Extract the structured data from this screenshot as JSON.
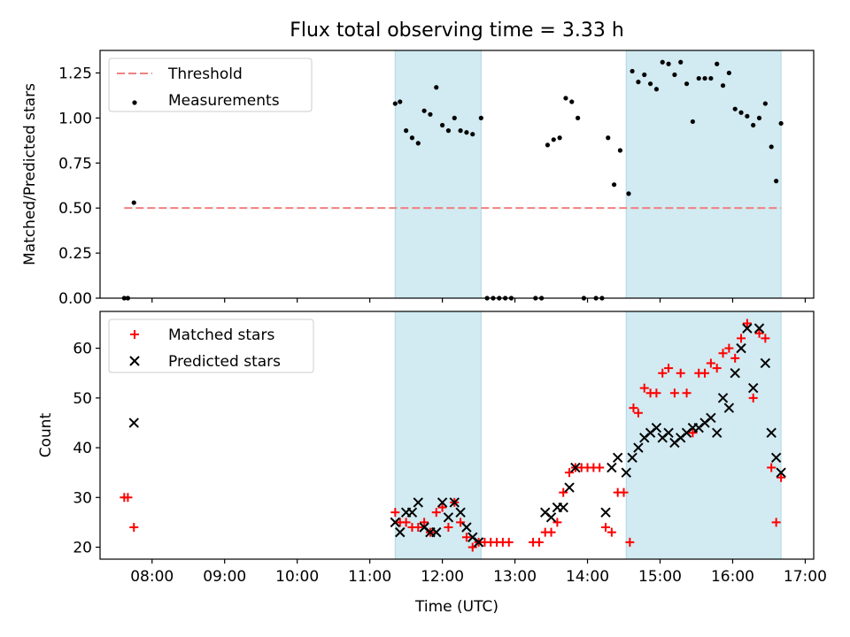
{
  "chart_data": [
    {
      "type": "scatter",
      "title": "Flux total observing time = 3.33 h",
      "xlabel": "",
      "ylabel": "Matched/Predicted stars",
      "xlim": [
        "07:17",
        "17:07"
      ],
      "ylim": [
        0,
        1.375
      ],
      "x_ticks": [
        "08:00",
        "09:00",
        "10:00",
        "11:00",
        "12:00",
        "13:00",
        "14:00",
        "15:00",
        "16:00",
        "17:00"
      ],
      "y_ticks": [
        "0.00",
        "0.25",
        "0.50",
        "0.75",
        "1.00",
        "1.25"
      ],
      "legend": {
        "placement": "top-left",
        "entries": [
          "Threshold",
          "Measurements"
        ]
      },
      "shaded_intervals": [
        [
          "11:21",
          "12:32"
        ],
        [
          "14:32",
          "16:40"
        ]
      ],
      "threshold": {
        "label": "Threshold",
        "y": 0.5,
        "x_range": [
          "07:37",
          "16:40"
        ],
        "color": "#f08080"
      },
      "series": [
        {
          "name": "Measurements",
          "color": "#000000",
          "points": [
            [
              "07:37",
              0.0
            ],
            [
              "07:40",
              0.0
            ],
            [
              "07:45",
              0.53
            ],
            [
              "11:21",
              1.08
            ],
            [
              "11:25",
              1.09
            ],
            [
              "11:30",
              0.93
            ],
            [
              "11:35",
              0.89
            ],
            [
              "11:40",
              0.86
            ],
            [
              "11:45",
              1.04
            ],
            [
              "11:50",
              1.02
            ],
            [
              "11:55",
              1.17
            ],
            [
              "12:00",
              0.96
            ],
            [
              "12:05",
              0.93
            ],
            [
              "12:10",
              1.0
            ],
            [
              "12:15",
              0.93
            ],
            [
              "12:20",
              0.92
            ],
            [
              "12:25",
              0.91
            ],
            [
              "12:32",
              1.0
            ],
            [
              "12:37",
              0.0
            ],
            [
              "12:42",
              0.0
            ],
            [
              "12:47",
              0.0
            ],
            [
              "12:52",
              0.0
            ],
            [
              "12:57",
              0.0
            ],
            [
              "13:17",
              0.0
            ],
            [
              "13:22",
              0.0
            ],
            [
              "13:27",
              0.85
            ],
            [
              "13:32",
              0.88
            ],
            [
              "13:37",
              0.89
            ],
            [
              "13:42",
              1.11
            ],
            [
              "13:47",
              1.09
            ],
            [
              "13:52",
              1.0
            ],
            [
              "13:57",
              0.0
            ],
            [
              "14:07",
              0.0
            ],
            [
              "14:12",
              0.0
            ],
            [
              "14:17",
              0.89
            ],
            [
              "14:22",
              0.63
            ],
            [
              "14:27",
              0.82
            ],
            [
              "14:34",
              0.58
            ],
            [
              "14:37",
              1.26
            ],
            [
              "14:42",
              1.2
            ],
            [
              "14:47",
              1.24
            ],
            [
              "14:52",
              1.19
            ],
            [
              "14:57",
              1.16
            ],
            [
              "15:02",
              1.31
            ],
            [
              "15:07",
              1.3
            ],
            [
              "15:12",
              1.24
            ],
            [
              "15:17",
              1.31
            ],
            [
              "15:22",
              1.19
            ],
            [
              "15:27",
              0.98
            ],
            [
              "15:32",
              1.22
            ],
            [
              "15:37",
              1.22
            ],
            [
              "15:42",
              1.22
            ],
            [
              "15:47",
              1.3
            ],
            [
              "15:52",
              1.18
            ],
            [
              "15:57",
              1.25
            ],
            [
              "16:02",
              1.05
            ],
            [
              "16:07",
              1.03
            ],
            [
              "16:12",
              1.01
            ],
            [
              "16:17",
              0.96
            ],
            [
              "16:22",
              1.0
            ],
            [
              "16:27",
              1.08
            ],
            [
              "16:32",
              0.84
            ],
            [
              "16:36",
              0.65
            ],
            [
              "16:40",
              0.97
            ]
          ]
        }
      ]
    },
    {
      "type": "scatter",
      "title": "",
      "xlabel": "Time (UTC)",
      "ylabel": "Count",
      "xlim": [
        "07:17",
        "17:07"
      ],
      "ylim": [
        17.6,
        67.4
      ],
      "x_ticks": [
        "08:00",
        "09:00",
        "10:00",
        "11:00",
        "12:00",
        "13:00",
        "14:00",
        "15:00",
        "16:00",
        "17:00"
      ],
      "y_ticks": [
        "20",
        "30",
        "40",
        "50",
        "60"
      ],
      "legend": {
        "placement": "top-left",
        "entries": [
          "Matched stars",
          "Predicted stars"
        ]
      },
      "shaded_intervals": [
        [
          "11:21",
          "12:32"
        ],
        [
          "14:32",
          "16:40"
        ]
      ],
      "series": [
        {
          "name": "Matched stars",
          "marker": "+",
          "color": "#ff0000",
          "points": [
            [
              "07:37",
              30
            ],
            [
              "07:40",
              30
            ],
            [
              "07:45",
              24
            ],
            [
              "11:21",
              27
            ],
            [
              "11:25",
              25
            ],
            [
              "11:30",
              25
            ],
            [
              "11:35",
              24
            ],
            [
              "11:40",
              24
            ],
            [
              "11:45",
              25
            ],
            [
              "11:50",
              23
            ],
            [
              "11:55",
              27
            ],
            [
              "12:00",
              28
            ],
            [
              "12:05",
              24
            ],
            [
              "12:10",
              29
            ],
            [
              "12:15",
              25
            ],
            [
              "12:20",
              22
            ],
            [
              "12:25",
              20
            ],
            [
              "12:30",
              21
            ],
            [
              "12:35",
              21
            ],
            [
              "12:40",
              21
            ],
            [
              "12:45",
              21
            ],
            [
              "12:50",
              21
            ],
            [
              "12:55",
              21
            ],
            [
              "13:15",
              21
            ],
            [
              "13:20",
              21
            ],
            [
              "13:25",
              23
            ],
            [
              "13:30",
              23
            ],
            [
              "13:35",
              25
            ],
            [
              "13:40",
              31
            ],
            [
              "13:45",
              35
            ],
            [
              "13:50",
              36
            ],
            [
              "13:55",
              36
            ],
            [
              "14:00",
              36
            ],
            [
              "14:05",
              36
            ],
            [
              "14:10",
              36
            ],
            [
              "14:15",
              24
            ],
            [
              "14:20",
              23
            ],
            [
              "14:25",
              31
            ],
            [
              "14:30",
              31
            ],
            [
              "14:35",
              21
            ],
            [
              "14:38",
              48
            ],
            [
              "14:42",
              47
            ],
            [
              "14:47",
              52
            ],
            [
              "14:52",
              51
            ],
            [
              "14:57",
              51
            ],
            [
              "15:02",
              55
            ],
            [
              "15:07",
              56
            ],
            [
              "15:12",
              51
            ],
            [
              "15:17",
              55
            ],
            [
              "15:22",
              51
            ],
            [
              "15:27",
              43
            ],
            [
              "15:32",
              55
            ],
            [
              "15:37",
              55
            ],
            [
              "15:42",
              57
            ],
            [
              "15:47",
              56
            ],
            [
              "15:52",
              59
            ],
            [
              "15:57",
              60
            ],
            [
              "16:02",
              58
            ],
            [
              "16:07",
              62
            ],
            [
              "16:12",
              65
            ],
            [
              "16:17",
              50
            ],
            [
              "16:22",
              63
            ],
            [
              "16:27",
              62
            ],
            [
              "16:32",
              36
            ],
            [
              "16:36",
              25
            ],
            [
              "16:40",
              34
            ]
          ]
        },
        {
          "name": "Predicted stars",
          "marker": "x",
          "color": "#000000",
          "points": [
            [
              "07:45",
              45
            ],
            [
              "11:21",
              25
            ],
            [
              "11:25",
              23
            ],
            [
              "11:30",
              27
            ],
            [
              "11:35",
              27
            ],
            [
              "11:40",
              29
            ],
            [
              "11:45",
              24
            ],
            [
              "11:50",
              23
            ],
            [
              "11:55",
              23
            ],
            [
              "12:00",
              29
            ],
            [
              "12:05",
              26
            ],
            [
              "12:10",
              29
            ],
            [
              "12:15",
              27
            ],
            [
              "12:20",
              24
            ],
            [
              "12:25",
              22
            ],
            [
              "12:30",
              21
            ],
            [
              "13:25",
              27
            ],
            [
              "13:30",
              26
            ],
            [
              "13:35",
              28
            ],
            [
              "13:40",
              28
            ],
            [
              "13:45",
              32
            ],
            [
              "13:50",
              36
            ],
            [
              "14:15",
              27
            ],
            [
              "14:20",
              36
            ],
            [
              "14:25",
              38
            ],
            [
              "14:32",
              35
            ],
            [
              "14:37",
              38
            ],
            [
              "14:42",
              40
            ],
            [
              "14:47",
              42
            ],
            [
              "14:52",
              43
            ],
            [
              "14:57",
              44
            ],
            [
              "15:02",
              42
            ],
            [
              "15:07",
              43
            ],
            [
              "15:12",
              41
            ],
            [
              "15:17",
              42
            ],
            [
              "15:22",
              43
            ],
            [
              "15:27",
              44
            ],
            [
              "15:32",
              44
            ],
            [
              "15:37",
              45
            ],
            [
              "15:42",
              46
            ],
            [
              "15:47",
              43
            ],
            [
              "15:52",
              50
            ],
            [
              "15:57",
              48
            ],
            [
              "16:02",
              55
            ],
            [
              "16:07",
              60
            ],
            [
              "16:12",
              64
            ],
            [
              "16:17",
              52
            ],
            [
              "16:22",
              64
            ],
            [
              "16:27",
              57
            ],
            [
              "16:32",
              43
            ],
            [
              "16:36",
              38
            ],
            [
              "16:40",
              35
            ]
          ]
        }
      ]
    }
  ]
}
